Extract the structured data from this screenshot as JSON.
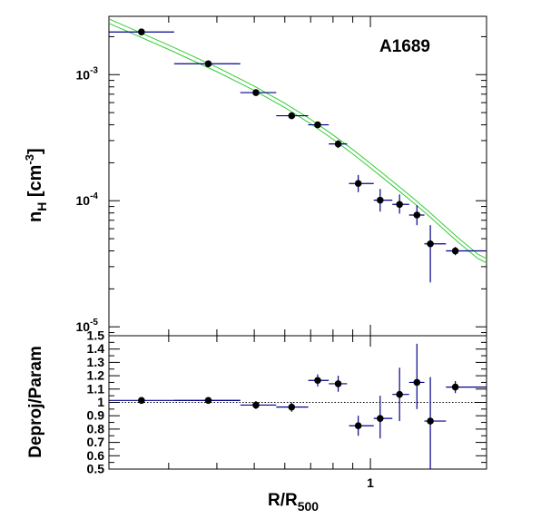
{
  "chart_data": [
    {
      "type": "scatter",
      "panel": "top",
      "scale": "log-log",
      "annotation": "A1689",
      "ylabel_main": "n",
      "ylabel_sub": "H",
      "ylabel_unit_a": " [cm",
      "ylabel_unit_sup": "-3",
      "ylabel_unit_b": "]",
      "xlim": [
        0.21,
        2.0
      ],
      "ylim": [
        8.5e-06,
        0.0029
      ],
      "y_ticks": [
        {
          "value": 0.001,
          "base": "10",
          "exp": "-3"
        },
        {
          "value": 0.0001,
          "base": "10",
          "exp": "-4"
        },
        {
          "value": 1e-05,
          "base": "10",
          "exp": "-5"
        }
      ],
      "series": [
        {
          "kind": "points",
          "color": "#000000",
          "errcolor": "#00008b",
          "points": [
            {
              "x": 0.255,
              "y": 0.00218,
              "xlo": 0.21,
              "xhi": 0.31,
              "ylo": 0.00214,
              "yhi": 0.00222
            },
            {
              "x": 0.38,
              "y": 0.00122,
              "xlo": 0.31,
              "xhi": 0.46,
              "ylo": 0.00119,
              "yhi": 0.00125
            },
            {
              "x": 0.505,
              "y": 0.00072,
              "xlo": 0.46,
              "xhi": 0.57,
              "ylo": 0.0007,
              "yhi": 0.00074
            },
            {
              "x": 0.625,
              "y": 0.000472,
              "xlo": 0.57,
              "xhi": 0.69,
              "ylo": 0.000455,
              "yhi": 0.00049
            },
            {
              "x": 0.73,
              "y": 0.0004,
              "xlo": 0.69,
              "xhi": 0.78,
              "ylo": 0.000382,
              "yhi": 0.000418
            },
            {
              "x": 0.825,
              "y": 0.000282,
              "xlo": 0.78,
              "xhi": 0.87,
              "ylo": 0.000262,
              "yhi": 0.000302
            },
            {
              "x": 0.93,
              "y": 0.000137,
              "xlo": 0.88,
              "xhi": 1.02,
              "ylo": 0.000117,
              "yhi": 0.00016
            },
            {
              "x": 1.06,
              "y": 0.000101,
              "xlo": 1.02,
              "xhi": 1.14,
              "ylo": 8.2e-05,
              "yhi": 0.000124
            },
            {
              "x": 1.19,
              "y": 9.35e-05,
              "xlo": 1.14,
              "xhi": 1.26,
              "ylo": 7.9e-05,
              "yhi": 0.000112
            },
            {
              "x": 1.32,
              "y": 7.7e-05,
              "xlo": 1.26,
              "xhi": 1.38,
              "ylo": 6.4e-05,
              "yhi": 9.2e-05
            },
            {
              "x": 1.43,
              "y": 4.55e-05,
              "xlo": 1.38,
              "xhi": 1.57,
              "ylo": 2.25e-05,
              "yhi": 6.4e-05
            },
            {
              "x": 1.66,
              "y": 4e-05,
              "xlo": 1.57,
              "xhi": 1.98,
              "ylo": 3.7e-05,
              "yhi": 4.3e-05
            }
          ]
        },
        {
          "kind": "model",
          "color": "#33cc33",
          "x": [
            0.21,
            0.3,
            0.4,
            0.5,
            0.6,
            0.7,
            0.8,
            0.9,
            1.0,
            1.1,
            1.2,
            1.3,
            1.4,
            1.5,
            1.6,
            1.7,
            1.8,
            1.9,
            2.0
          ],
          "y": [
            0.00266,
            0.00165,
            0.0011,
            0.00078,
            0.00057,
            0.000425,
            0.00032,
            0.000245,
            0.00019,
            0.00015,
            0.000121,
            9.9e-05,
            8.15e-05,
            6.75e-05,
            5.65e-05,
            4.8e-05,
            4.15e-05,
            3.62e-05,
            3.35e-05
          ]
        }
      ]
    },
    {
      "type": "scatter",
      "panel": "bottom",
      "scale": "log-x",
      "ylabel": "Deproj/Param",
      "xlabel_main": "R/R",
      "xlabel_sub": "500",
      "xlim": [
        0.21,
        2.0
      ],
      "ylim": [
        0.5,
        1.5
      ],
      "x_tick_label": "1",
      "y_tick_labels": [
        "0.5",
        "0.6",
        "0.7",
        "0.8",
        "0.9",
        "1",
        "1.1",
        "1.2",
        "1.3",
        "1.4",
        "1.5"
      ],
      "reference_line": 1,
      "series": [
        {
          "kind": "points",
          "color": "#000000",
          "errcolor": "#00008b",
          "points": [
            {
              "x": 0.255,
              "y": 1.015,
              "xlo": 0.21,
              "xhi": 0.46,
              "ylo": 1.0,
              "yhi": 1.03
            },
            {
              "x": 0.38,
              "y": 1.015,
              "xlo": 0.31,
              "xhi": 0.46,
              "ylo": 0.998,
              "yhi": 1.032
            },
            {
              "x": 0.505,
              "y": 0.98,
              "xlo": 0.46,
              "xhi": 0.57,
              "ylo": 0.95,
              "yhi": 1.01
            },
            {
              "x": 0.625,
              "y": 0.965,
              "xlo": 0.57,
              "xhi": 0.69,
              "ylo": 0.93,
              "yhi": 1.0
            },
            {
              "x": 0.73,
              "y": 1.165,
              "xlo": 0.69,
              "xhi": 0.78,
              "ylo": 1.12,
              "yhi": 1.21
            },
            {
              "x": 0.825,
              "y": 1.14,
              "xlo": 0.78,
              "xhi": 0.87,
              "ylo": 1.08,
              "yhi": 1.2
            },
            {
              "x": 0.93,
              "y": 0.825,
              "xlo": 0.88,
              "xhi": 1.02,
              "ylo": 0.75,
              "yhi": 0.9
            },
            {
              "x": 1.06,
              "y": 0.88,
              "xlo": 1.02,
              "xhi": 1.14,
              "ylo": 0.73,
              "yhi": 1.05
            },
            {
              "x": 1.19,
              "y": 1.06,
              "xlo": 1.14,
              "xhi": 1.26,
              "ylo": 0.86,
              "yhi": 1.26
            },
            {
              "x": 1.32,
              "y": 1.15,
              "xlo": 1.26,
              "xhi": 1.38,
              "ylo": 0.95,
              "yhi": 1.44
            },
            {
              "x": 1.43,
              "y": 0.86,
              "xlo": 1.38,
              "xhi": 1.57,
              "ylo": 0.5,
              "yhi": 1.19
            },
            {
              "x": 1.66,
              "y": 1.115,
              "xlo": 1.57,
              "xhi": 2.0,
              "ylo": 1.07,
              "yhi": 1.16
            }
          ]
        }
      ]
    }
  ]
}
